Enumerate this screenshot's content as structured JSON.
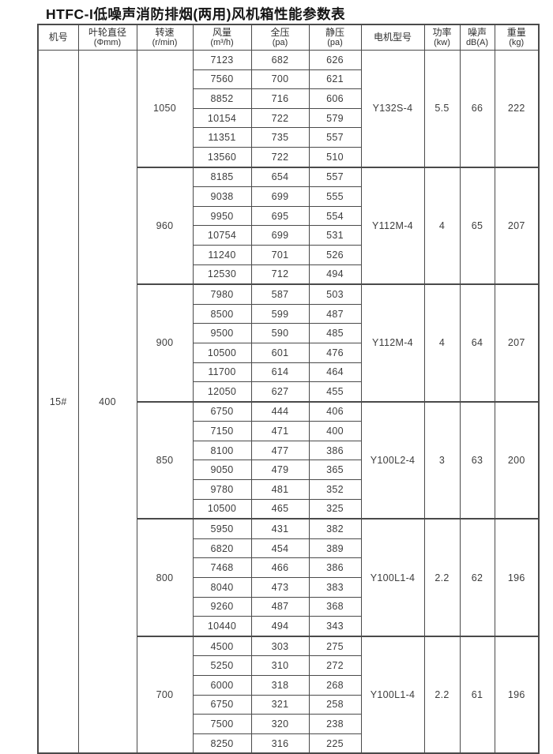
{
  "page": {
    "title": "HTFC-I低噪声消防排烟(两用)风机箱性能参数表",
    "background_color": "#ffffff",
    "border_color": "#4a4a4a",
    "text_color": "#3d3d3d"
  },
  "table": {
    "headers": [
      {
        "line1": "机号",
        "line2": ""
      },
      {
        "line1": "叶轮直径",
        "line2": "(Φmm)"
      },
      {
        "line1": "转速",
        "line2": "(r/min)"
      },
      {
        "line1": "风量",
        "line2": "(m³/h)"
      },
      {
        "line1": "全压",
        "line2": "(pa)"
      },
      {
        "line1": "静压",
        "line2": "(pa)"
      },
      {
        "line1": "电机型号",
        "line2": ""
      },
      {
        "line1": "功率",
        "line2": "(kw)"
      },
      {
        "line1": "噪声",
        "line2": "dB(A)"
      },
      {
        "line1": "重量",
        "line2": "(kg)"
      }
    ],
    "machine_no": "15#",
    "impeller_diameter": "400",
    "groups": [
      {
        "speed": "1050",
        "motor_model": "Y132S-4",
        "power": "5.5",
        "noise": "66",
        "weight": "222",
        "rows": [
          {
            "airflow": "7123",
            "total_pressure": "682",
            "static_pressure": "626"
          },
          {
            "airflow": "7560",
            "total_pressure": "700",
            "static_pressure": "621"
          },
          {
            "airflow": "8852",
            "total_pressure": "716",
            "static_pressure": "606"
          },
          {
            "airflow": "10154",
            "total_pressure": "722",
            "static_pressure": "579"
          },
          {
            "airflow": "11351",
            "total_pressure": "735",
            "static_pressure": "557"
          },
          {
            "airflow": "13560",
            "total_pressure": "722",
            "static_pressure": "510"
          }
        ]
      },
      {
        "speed": "960",
        "motor_model": "Y112M-4",
        "power": "4",
        "noise": "65",
        "weight": "207",
        "rows": [
          {
            "airflow": "8185",
            "total_pressure": "654",
            "static_pressure": "557"
          },
          {
            "airflow": "9038",
            "total_pressure": "699",
            "static_pressure": "555"
          },
          {
            "airflow": "9950",
            "total_pressure": "695",
            "static_pressure": "554"
          },
          {
            "airflow": "10754",
            "total_pressure": "699",
            "static_pressure": "531"
          },
          {
            "airflow": "11240",
            "total_pressure": "701",
            "static_pressure": "526"
          },
          {
            "airflow": "12530",
            "total_pressure": "712",
            "static_pressure": "494"
          }
        ]
      },
      {
        "speed": "900",
        "motor_model": "Y112M-4",
        "power": "4",
        "noise": "64",
        "weight": "207",
        "rows": [
          {
            "airflow": "7980",
            "total_pressure": "587",
            "static_pressure": "503"
          },
          {
            "airflow": "8500",
            "total_pressure": "599",
            "static_pressure": "487"
          },
          {
            "airflow": "9500",
            "total_pressure": "590",
            "static_pressure": "485"
          },
          {
            "airflow": "10500",
            "total_pressure": "601",
            "static_pressure": "476"
          },
          {
            "airflow": "11700",
            "total_pressure": "614",
            "static_pressure": "464"
          },
          {
            "airflow": "12050",
            "total_pressure": "627",
            "static_pressure": "455"
          }
        ]
      },
      {
        "speed": "850",
        "motor_model": "Y100L2-4",
        "power": "3",
        "noise": "63",
        "weight": "200",
        "rows": [
          {
            "airflow": "6750",
            "total_pressure": "444",
            "static_pressure": "406"
          },
          {
            "airflow": "7150",
            "total_pressure": "471",
            "static_pressure": "400"
          },
          {
            "airflow": "8100",
            "total_pressure": "477",
            "static_pressure": "386"
          },
          {
            "airflow": "9050",
            "total_pressure": "479",
            "static_pressure": "365"
          },
          {
            "airflow": "9780",
            "total_pressure": "481",
            "static_pressure": "352"
          },
          {
            "airflow": "10500",
            "total_pressure": "465",
            "static_pressure": "325"
          }
        ]
      },
      {
        "speed": "800",
        "motor_model": "Y100L1-4",
        "power": "2.2",
        "noise": "62",
        "weight": "196",
        "rows": [
          {
            "airflow": "5950",
            "total_pressure": "431",
            "static_pressure": "382"
          },
          {
            "airflow": "6820",
            "total_pressure": "454",
            "static_pressure": "389"
          },
          {
            "airflow": "7468",
            "total_pressure": "466",
            "static_pressure": "386"
          },
          {
            "airflow": "8040",
            "total_pressure": "473",
            "static_pressure": "383"
          },
          {
            "airflow": "9260",
            "total_pressure": "487",
            "static_pressure": "368"
          },
          {
            "airflow": "10440",
            "total_pressure": "494",
            "static_pressure": "343"
          }
        ]
      },
      {
        "speed": "700",
        "motor_model": "Y100L1-4",
        "power": "2.2",
        "noise": "61",
        "weight": "196",
        "rows": [
          {
            "airflow": "4500",
            "total_pressure": "303",
            "static_pressure": "275"
          },
          {
            "airflow": "5250",
            "total_pressure": "310",
            "static_pressure": "272"
          },
          {
            "airflow": "6000",
            "total_pressure": "318",
            "static_pressure": "268"
          },
          {
            "airflow": "6750",
            "total_pressure": "321",
            "static_pressure": "258"
          },
          {
            "airflow": "7500",
            "total_pressure": "320",
            "static_pressure": "238"
          },
          {
            "airflow": "8250",
            "total_pressure": "316",
            "static_pressure": "225"
          }
        ]
      }
    ]
  }
}
